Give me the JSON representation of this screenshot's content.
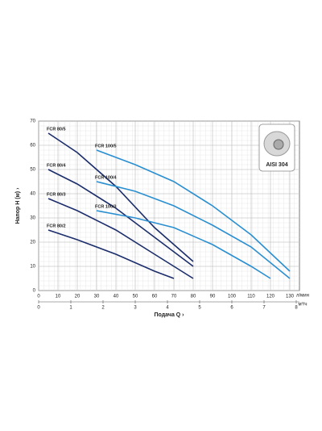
{
  "chart_data": {
    "type": "line",
    "x_label": "Подача Q ›",
    "y_label": "Напор H (м) ›",
    "x_unit": "л/мин",
    "x2_unit": "м³/ч",
    "inset_label": "AISI 304",
    "xlim": [
      0,
      135
    ],
    "xticks": [
      0,
      10,
      20,
      30,
      40,
      50,
      60,
      70,
      80,
      90,
      100,
      110,
      120,
      130
    ],
    "x2lim": [
      0,
      8.1
    ],
    "x2ticks": [
      0,
      1,
      2,
      3,
      4,
      5,
      6,
      7,
      8
    ],
    "ylim": [
      0,
      70
    ],
    "yticks": [
      0,
      10,
      20,
      30,
      40,
      50,
      60,
      70
    ],
    "grid": true,
    "series": [
      {
        "name": "FCR 80/2",
        "color": "#1b2d6b",
        "x": [
          5,
          20,
          40,
          60,
          70
        ],
        "values": [
          25,
          21,
          15,
          8,
          5
        ]
      },
      {
        "name": "FCR 80/3",
        "color": "#1b2d6b",
        "x": [
          5,
          20,
          40,
          60,
          80
        ],
        "values": [
          38,
          33,
          25,
          15,
          5
        ]
      },
      {
        "name": "FCR 80/4",
        "color": "#1b2d6b",
        "x": [
          5,
          20,
          40,
          60,
          80
        ],
        "values": [
          50,
          44,
          34,
          22,
          10
        ]
      },
      {
        "name": "FCR 80/5",
        "color": "#1b2d6b",
        "x": [
          5,
          20,
          40,
          60,
          80
        ],
        "values": [
          65,
          57,
          43,
          26,
          12
        ]
      },
      {
        "name": "FCR 100/3",
        "color": "#2a8fd0",
        "x": [
          30,
          50,
          70,
          90,
          110,
          120
        ],
        "values": [
          33,
          30,
          26,
          19,
          10,
          5
        ]
      },
      {
        "name": "FCR 100/4",
        "color": "#2a8fd0",
        "x": [
          30,
          50,
          70,
          90,
          110,
          130
        ],
        "values": [
          45,
          41,
          35,
          27,
          18,
          5
        ]
      },
      {
        "name": "FCR 100/5",
        "color": "#2a8fd0",
        "x": [
          30,
          50,
          70,
          90,
          110,
          130
        ],
        "values": [
          58,
          52,
          45,
          35,
          23,
          8
        ]
      }
    ]
  }
}
